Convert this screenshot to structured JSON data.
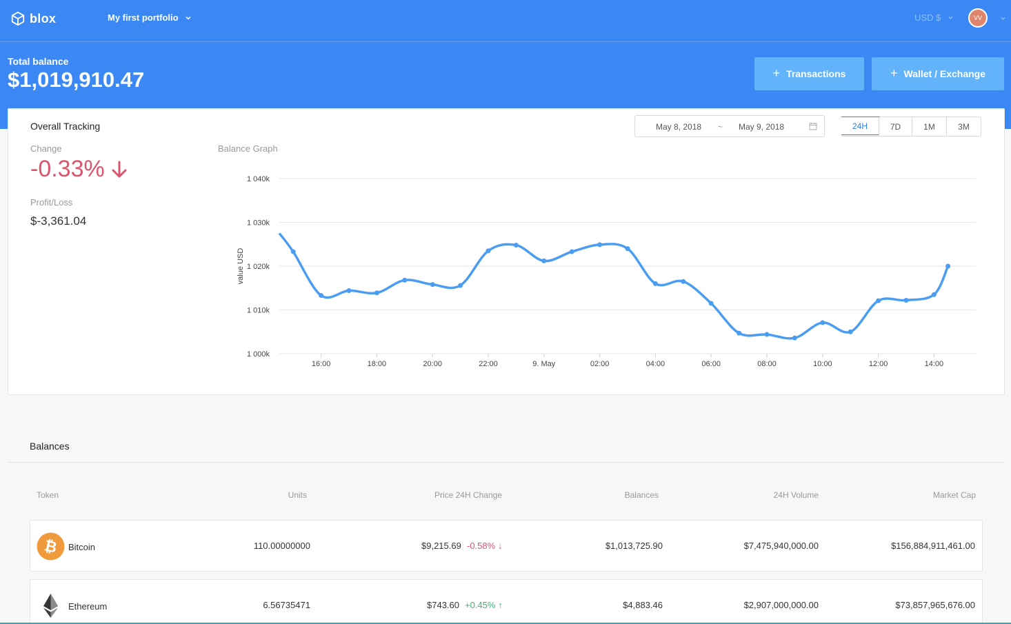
{
  "header": {
    "logo_text": "blox",
    "portfolio_name": "My first portfolio",
    "currency": "USD $",
    "avatar_initials": "VV"
  },
  "summary": {
    "total_label": "Total balance",
    "total_value": "$1,019,910.47",
    "transactions_button": "Transactions",
    "wallet_button": "Wallet / Exchange"
  },
  "tracking": {
    "title": "Overall Tracking",
    "date_from": "May 8, 2018",
    "date_sep": "~",
    "date_to": "May 9, 2018",
    "ranges": [
      "24H",
      "7D",
      "1M",
      "3M"
    ],
    "active_range": "24H",
    "change_label": "Change",
    "change_value": "-0.33%",
    "pl_label": "Profit/Loss",
    "pl_value": "$-3,361.04",
    "graph_label": "Balance Graph"
  },
  "chart_data": {
    "type": "line",
    "title": "Balance Graph",
    "ylabel": "value USD",
    "xlabel": "",
    "ylim": [
      1000000,
      1040000
    ],
    "y_ticks": [
      1000000,
      1010000,
      1020000,
      1030000,
      1040000
    ],
    "y_tick_labels": [
      "1 000k",
      "1 010k",
      "1 020k",
      "1 030k",
      "1 040k"
    ],
    "x_tick_labels": [
      "16:00",
      "18:00",
      "20:00",
      "22:00",
      "9. May",
      "02:00",
      "04:00",
      "06:00",
      "08:00",
      "10:00",
      "12:00",
      "14:00"
    ],
    "x_tick_hours": [
      16,
      18,
      20,
      22,
      24,
      26,
      28,
      30,
      32,
      34,
      36,
      38
    ],
    "grid": true,
    "series": [
      {
        "name": "",
        "color": "#4a9df0",
        "x_hours": [
          14.5,
          15,
          16,
          17,
          18,
          19,
          20,
          21,
          22,
          23,
          24,
          25,
          26,
          27,
          28,
          29,
          30,
          31,
          32,
          33,
          34,
          35,
          36,
          37,
          38,
          38.5
        ],
        "values": [
          1027500,
          1023300,
          1013300,
          1014400,
          1013900,
          1016800,
          1015800,
          1015600,
          1023500,
          1024800,
          1021200,
          1023300,
          1024900,
          1024000,
          1016000,
          1016500,
          1011500,
          1004700,
          1004400,
          1003600,
          1007100,
          1005000,
          1012100,
          1012200,
          1013500,
          1020000
        ],
        "markers": true
      }
    ]
  },
  "balances": {
    "title": "Balances",
    "columns": [
      "Token",
      "Units",
      "Price 24H Change",
      "Balances",
      "24H Volume",
      "Market Cap"
    ],
    "rows": [
      {
        "token": "Bitcoin",
        "icon": "bitcoin-icon",
        "units": "110.00000000",
        "price": "$9,215.69",
        "change": "-0.58%",
        "direction": "down",
        "balance": "$1,013,725.90",
        "volume": "$7,475,940,000.00",
        "market_cap": "$156,884,911,461.00"
      },
      {
        "token": "Ethereum",
        "icon": "ethereum-icon",
        "units": "6.56735471",
        "price": "$743.60",
        "change": "+0.45%",
        "direction": "up",
        "balance": "$4,883.46",
        "volume": "$2,907,000,000.00",
        "market_cap": "$73,857,965,676.00"
      }
    ]
  },
  "colors": {
    "primary": "#3b88f5",
    "button": "#62b3f9",
    "negative": "#d9556d",
    "positive": "#3cb371",
    "line": "#4a9df0"
  }
}
